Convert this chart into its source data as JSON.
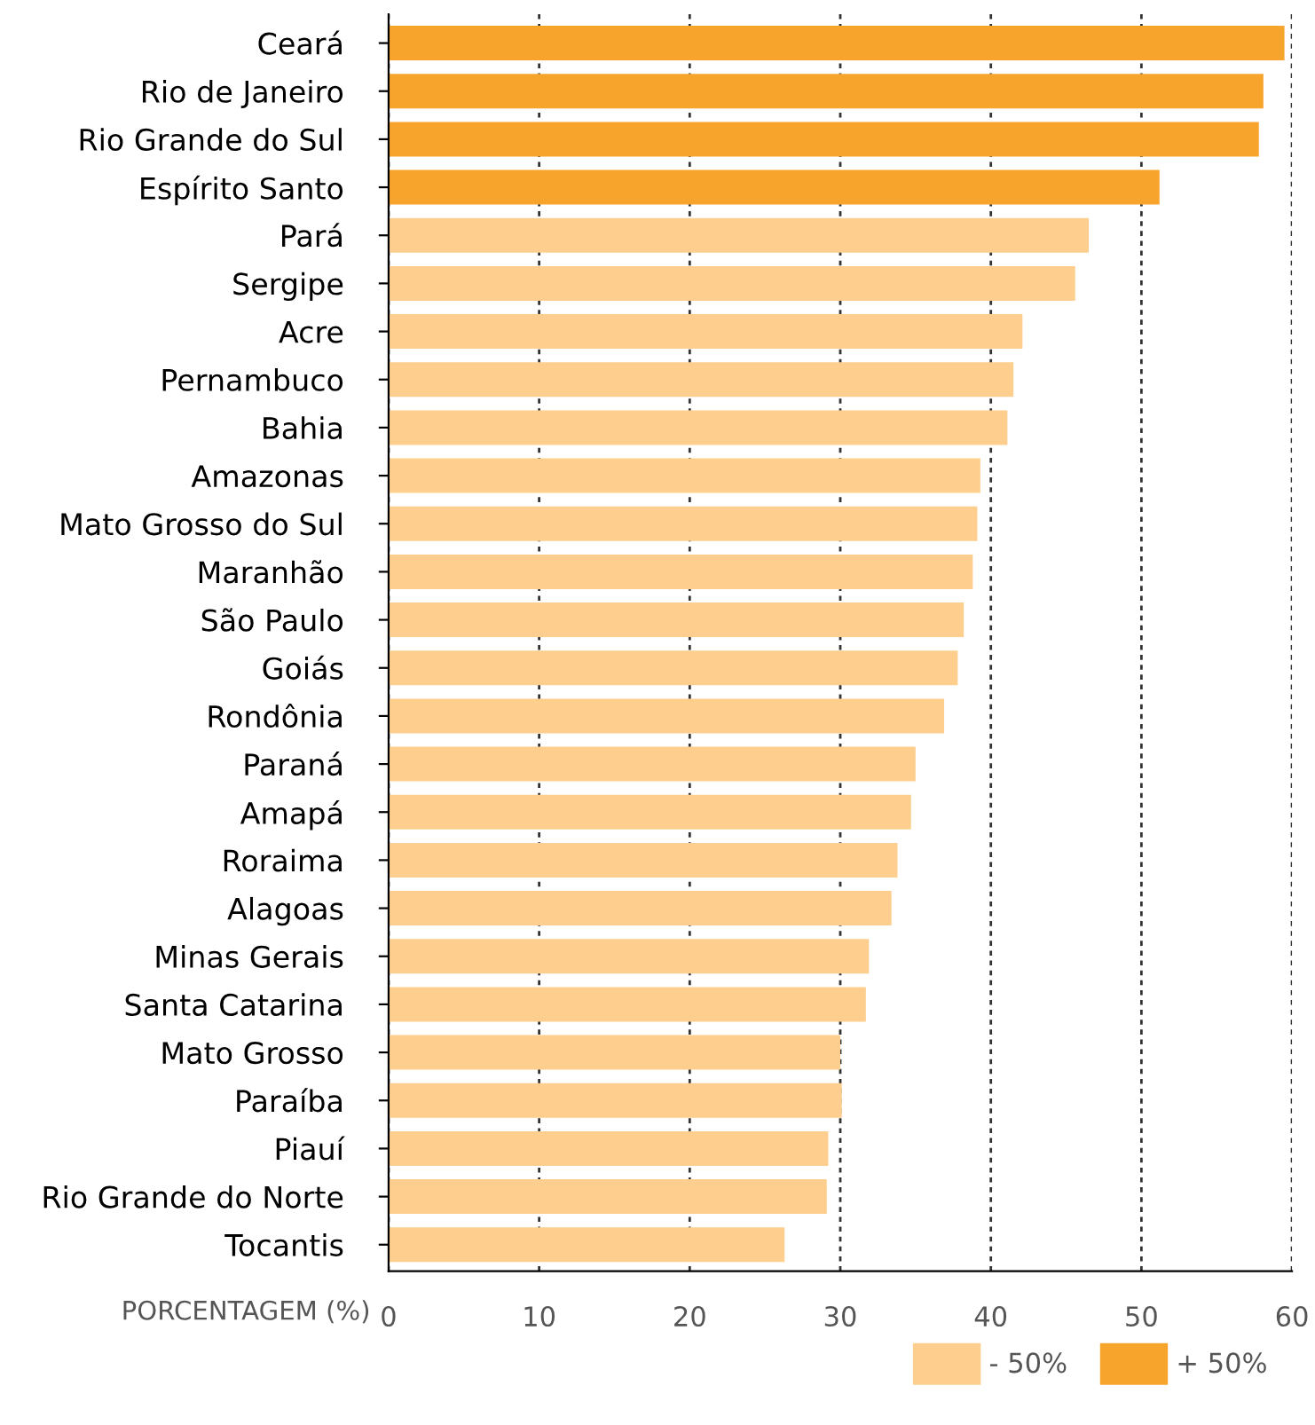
{
  "chart_data": {
    "type": "bar",
    "orientation": "horizontal",
    "xlabel": "PORCENTAGEM (%)",
    "categories": [
      "Ceará",
      "Rio de Janeiro",
      "Rio Grande do Sul",
      "Espírito Santo",
      "Pará",
      "Sergipe",
      "Acre",
      "Pernambuco",
      "Bahia",
      "Amazonas",
      "Mato Grosso do Sul",
      "Maranhão",
      "São Paulo",
      "Goiás",
      "Rondônia",
      "Paraná",
      "Amapá",
      "Roraima",
      "Alagoas",
      "Minas Gerais",
      "Santa Catarina",
      "Mato Grosso",
      "Paraíba",
      "Piauí",
      "Rio Grande do Norte",
      "Tocantis"
    ],
    "series": [
      {
        "name": "- 50%",
        "color": "#fdce8e",
        "values": [
          null,
          null,
          null,
          null,
          46.5,
          45.6,
          42.1,
          41.5,
          41.1,
          39.3,
          39.1,
          38.8,
          38.2,
          37.8,
          36.9,
          35.0,
          34.7,
          33.8,
          33.4,
          31.9,
          31.7,
          30.0,
          30.1,
          29.2,
          29.1,
          26.3
        ]
      },
      {
        "name": "+ 50%",
        "color": "#f7a42c",
        "values": [
          59.5,
          58.1,
          57.8,
          51.2,
          null,
          null,
          null,
          null,
          null,
          null,
          null,
          null,
          null,
          null,
          null,
          null,
          null,
          null,
          null,
          null,
          null,
          null,
          null,
          null,
          null,
          null
        ]
      }
    ],
    "xlim": [
      0,
      60
    ],
    "xticks": [
      0,
      10,
      20,
      30,
      40,
      50,
      60
    ],
    "grid": "x",
    "legend": "bottom right"
  }
}
